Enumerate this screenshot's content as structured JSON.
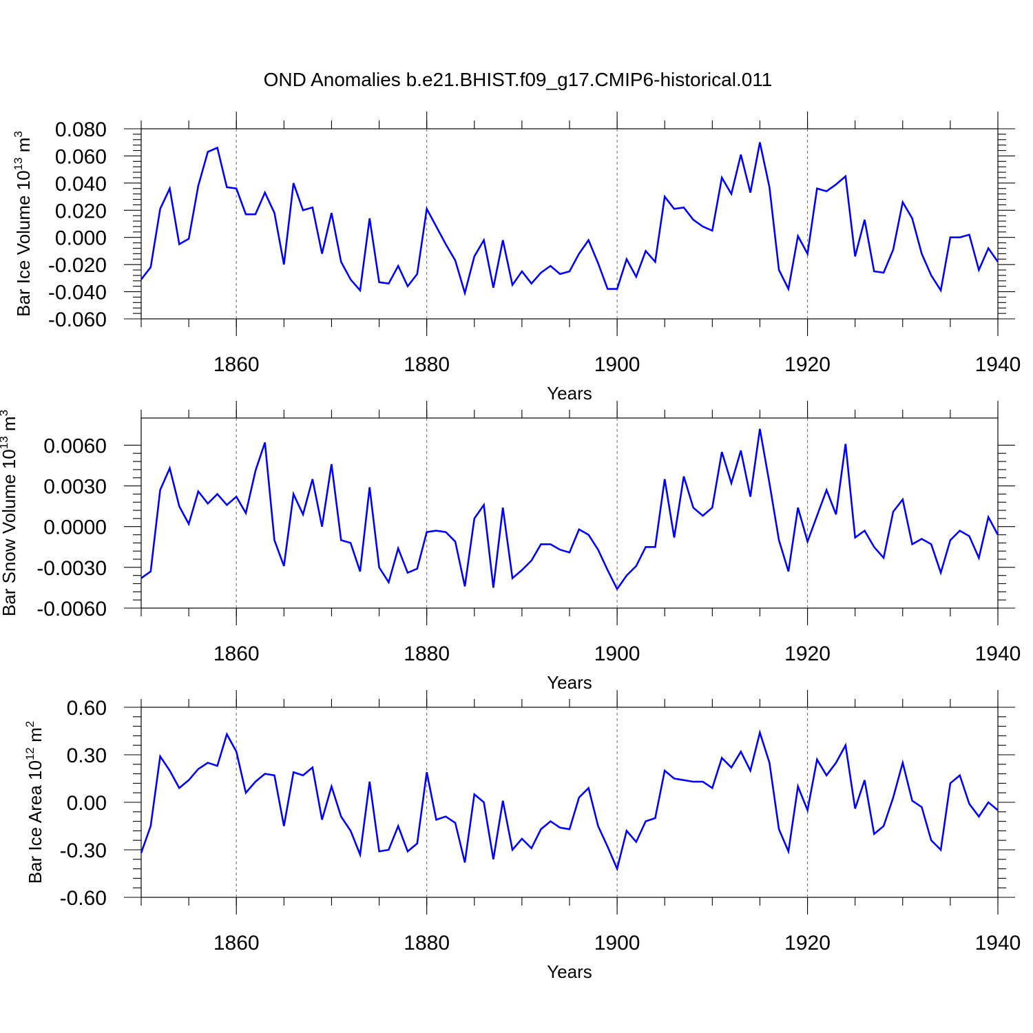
{
  "title": "OND Anomalies b.e21.BHIST.f09_g17.CMIP6-historical.011",
  "style": {
    "line_color": "#0000ff",
    "grid_color": "#666666"
  },
  "chart_data": [
    {
      "type": "line",
      "name": "ice-volume",
      "title": "OND Anomalies b.e21.BHIST.f09_g17.CMIP6-historical.011",
      "xlabel": "Years",
      "ylabel_parts": {
        "prefix": "Bar Ice Volume 10",
        "exp": "13",
        "unit": " m",
        "unit_exp": "3"
      },
      "xlim": [
        1850,
        1940
      ],
      "ylim": [
        -0.06,
        0.08
      ],
      "xticks": [
        1860,
        1880,
        1900,
        1920,
        1940
      ],
      "xtick_labels": [
        "1860",
        "1880",
        "1900",
        "1920",
        "1940"
      ],
      "yticks": [
        -0.06,
        -0.04,
        -0.02,
        0.0,
        0.02,
        0.04,
        0.06,
        0.08
      ],
      "ytick_labels": [
        "-0.060",
        "-0.040",
        "-0.020",
        "0.000",
        "0.020",
        "0.040",
        "0.060",
        "0.080"
      ],
      "x_start": 1850,
      "series": [
        {
          "name": "Bar Ice Volume",
          "values": [
            -0.031,
            -0.022,
            0.021,
            0.036,
            -0.005,
            -0.001,
            0.038,
            0.063,
            0.066,
            0.037,
            0.036,
            0.017,
            0.017,
            0.033,
            0.018,
            -0.02,
            0.04,
            0.02,
            0.022,
            -0.012,
            0.018,
            -0.018,
            -0.031,
            -0.039,
            0.014,
            -0.033,
            -0.034,
            -0.021,
            -0.036,
            -0.027,
            0.021,
            0.008,
            -0.005,
            -0.017,
            -0.041,
            -0.014,
            -0.002,
            -0.037,
            -0.002,
            -0.035,
            -0.025,
            -0.034,
            -0.026,
            -0.021,
            -0.027,
            -0.025,
            -0.012,
            -0.002,
            -0.019,
            -0.038,
            -0.038,
            -0.016,
            -0.029,
            -0.01,
            -0.018,
            0.03,
            0.021,
            0.022,
            0.013,
            0.008,
            0.005,
            0.044,
            0.032,
            0.061,
            0.033,
            0.07,
            0.037,
            -0.024,
            -0.038,
            0.001,
            -0.012,
            0.036,
            0.034,
            0.039,
            0.045,
            -0.014,
            0.013,
            -0.025,
            -0.026,
            -0.009,
            0.026,
            0.014,
            -0.012,
            -0.028,
            -0.039,
            0.0,
            0.0,
            0.002,
            -0.024,
            -0.008,
            -0.018
          ]
        }
      ]
    },
    {
      "type": "line",
      "name": "snow-volume",
      "xlabel": "Years",
      "ylabel_parts": {
        "prefix": "Bar Snow Volume 10",
        "exp": "13",
        "unit": " m",
        "unit_exp": "3"
      },
      "xlim": [
        1850,
        1940
      ],
      "ylim": [
        -0.006,
        0.008
      ],
      "xticks": [
        1860,
        1880,
        1900,
        1920,
        1940
      ],
      "xtick_labels": [
        "1860",
        "1880",
        "1900",
        "1920",
        "1940"
      ],
      "yticks": [
        -0.006,
        -0.003,
        0.0,
        0.003,
        0.006
      ],
      "ytick_labels": [
        "-0.0060",
        "-0.0030",
        "0.0000",
        "0.0030",
        "0.0060"
      ],
      "x_start": 1850,
      "series": [
        {
          "name": "Bar Snow Volume",
          "values": [
            -0.0038,
            -0.0033,
            0.0027,
            0.0043,
            0.0015,
            0.0002,
            0.0026,
            0.0017,
            0.0024,
            0.0016,
            0.0022,
            0.001,
            0.0041,
            0.0062,
            -0.001,
            -0.0029,
            0.0024,
            0.0009,
            0.0035,
            0.0,
            0.0046,
            -0.001,
            -0.0012,
            -0.0033,
            0.0029,
            -0.003,
            -0.0041,
            -0.0016,
            -0.0034,
            -0.0031,
            -0.0004,
            -0.0003,
            -0.0004,
            -0.0011,
            -0.0044,
            0.0006,
            0.0016,
            -0.0045,
            0.0014,
            -0.0038,
            -0.0032,
            -0.0025,
            -0.0013,
            -0.0013,
            -0.0017,
            -0.0019,
            -0.0002,
            -0.0006,
            -0.0017,
            -0.0032,
            -0.0046,
            -0.0036,
            -0.0029,
            -0.0015,
            -0.0015,
            0.0035,
            -0.0008,
            0.0037,
            0.0014,
            0.0008,
            0.0014,
            0.0055,
            0.0032,
            0.0056,
            0.0022,
            0.0072,
            0.0032,
            -0.001,
            -0.0033,
            0.0014,
            -0.0011,
            0.0008,
            0.0027,
            0.0009,
            0.0061,
            -0.0008,
            -0.0003,
            -0.0015,
            -0.0023,
            0.0011,
            0.002,
            -0.0013,
            -0.0009,
            -0.0013,
            -0.0034,
            -0.001,
            -0.0003,
            -0.0007,
            -0.0023,
            0.0007,
            -0.0006
          ]
        }
      ]
    },
    {
      "type": "line",
      "name": "ice-area",
      "xlabel": "Years",
      "ylabel_parts": {
        "prefix": "Bar Ice Area 10",
        "exp": "12",
        "unit": " m",
        "unit_exp": "2"
      },
      "xlim": [
        1850,
        1940
      ],
      "ylim": [
        -0.6,
        0.6
      ],
      "xticks": [
        1860,
        1880,
        1900,
        1920,
        1940
      ],
      "xtick_labels": [
        "1860",
        "1880",
        "1900",
        "1920",
        "1940"
      ],
      "yticks": [
        -0.6,
        -0.3,
        0.0,
        0.3,
        0.6
      ],
      "ytick_labels": [
        "-0.60",
        "-0.30",
        "0.00",
        "0.30",
        "0.60"
      ],
      "x_start": 1850,
      "series": [
        {
          "name": "Bar Ice Area",
          "values": [
            -0.32,
            -0.15,
            0.29,
            0.2,
            0.09,
            0.14,
            0.21,
            0.25,
            0.23,
            0.43,
            0.32,
            0.06,
            0.13,
            0.18,
            0.17,
            -0.15,
            0.19,
            0.17,
            0.22,
            -0.11,
            0.1,
            -0.09,
            -0.18,
            -0.33,
            0.13,
            -0.31,
            -0.3,
            -0.15,
            -0.31,
            -0.26,
            0.19,
            -0.11,
            -0.09,
            -0.13,
            -0.38,
            0.05,
            0.0,
            -0.36,
            0.01,
            -0.3,
            -0.23,
            -0.29,
            -0.17,
            -0.12,
            -0.16,
            -0.17,
            0.03,
            0.09,
            -0.15,
            -0.28,
            -0.42,
            -0.18,
            -0.25,
            -0.12,
            -0.1,
            0.2,
            0.15,
            0.14,
            0.13,
            0.13,
            0.09,
            0.28,
            0.22,
            0.32,
            0.2,
            0.44,
            0.25,
            -0.17,
            -0.31,
            0.1,
            -0.05,
            0.27,
            0.17,
            0.25,
            0.36,
            -0.04,
            0.14,
            -0.2,
            -0.15,
            0.03,
            0.25,
            0.01,
            -0.03,
            -0.24,
            -0.3,
            0.12,
            0.17,
            -0.01,
            -0.09,
            0.0,
            -0.05
          ]
        }
      ]
    }
  ]
}
